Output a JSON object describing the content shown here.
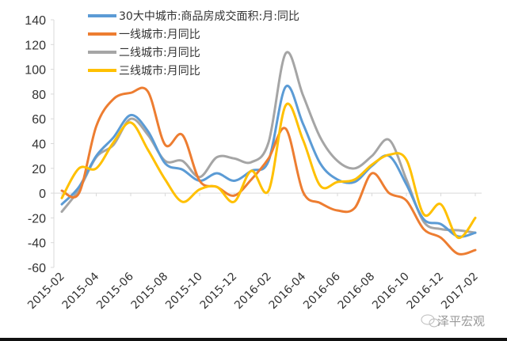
{
  "chart_data": {
    "type": "line",
    "title": "",
    "xlabel": "",
    "ylabel": "",
    "ylim": [
      -60,
      140
    ],
    "yticks": [
      "140",
      "120",
      "100",
      "80",
      "60",
      "40",
      "20",
      "0",
      "-20",
      "-40",
      "-60"
    ],
    "ytick_values": [
      140,
      120,
      100,
      80,
      60,
      40,
      20,
      0,
      -20,
      -40,
      -60
    ],
    "x": [
      "2015-02",
      "2015-03",
      "2015-04",
      "2015-05",
      "2015-06",
      "2015-07",
      "2015-08",
      "2015-09",
      "2015-10",
      "2015-11",
      "2015-12",
      "2016-01",
      "2016-02",
      "2016-03",
      "2016-04",
      "2016-05",
      "2016-06",
      "2016-07",
      "2016-08",
      "2016-09",
      "2016-10",
      "2016-11",
      "2016-12",
      "2017-01",
      "2017-02"
    ],
    "xtick_labels": [
      "2015-02",
      "2015-04",
      "2015-06",
      "2015-08",
      "2015-10",
      "2015-12",
      "2016-02",
      "2016-04",
      "2016-06",
      "2016-08",
      "2016-10",
      "2016-12",
      "2017-02"
    ],
    "grid": false,
    "legend_position": "top-left",
    "series": [
      {
        "name": "30大中城市:商品房成交面积:月:同比",
        "color": "#5b9bd5",
        "values": [
          -9,
          5,
          30,
          45,
          63,
          50,
          24,
          19,
          10,
          16,
          10,
          18,
          26,
          86,
          56,
          24,
          11,
          9,
          22,
          30,
          7,
          -21,
          -25,
          -35,
          -32
        ]
      },
      {
        "name": "一线城市:月同比",
        "color": "#ed7d31",
        "values": [
          2,
          0,
          54,
          76,
          81,
          82,
          39,
          47,
          10,
          5,
          -2,
          11,
          28,
          52,
          1,
          -8,
          -14,
          -12,
          16,
          0,
          -6,
          -29,
          -36,
          -49,
          -46
        ]
      },
      {
        "name": "二线城市:月同比",
        "color": "#a5a5a5",
        "values": [
          -15,
          3,
          29,
          39,
          60,
          47,
          26,
          26,
          13,
          29,
          28,
          25,
          41,
          113,
          79,
          45,
          26,
          20,
          30,
          43,
          11,
          -23,
          -29,
          -30,
          -32
        ]
      },
      {
        "name": "三线城市:月同比",
        "color": "#ffc000",
        "values": [
          -4,
          20,
          20,
          41,
          57,
          35,
          11,
          -7,
          3,
          5,
          -7,
          18,
          2,
          71,
          43,
          6,
          9,
          11,
          23,
          31,
          27,
          -17,
          -9,
          -36,
          -20
        ]
      }
    ]
  },
  "watermark": {
    "text": "泽平宏观",
    "icon": "wechat-icon"
  }
}
